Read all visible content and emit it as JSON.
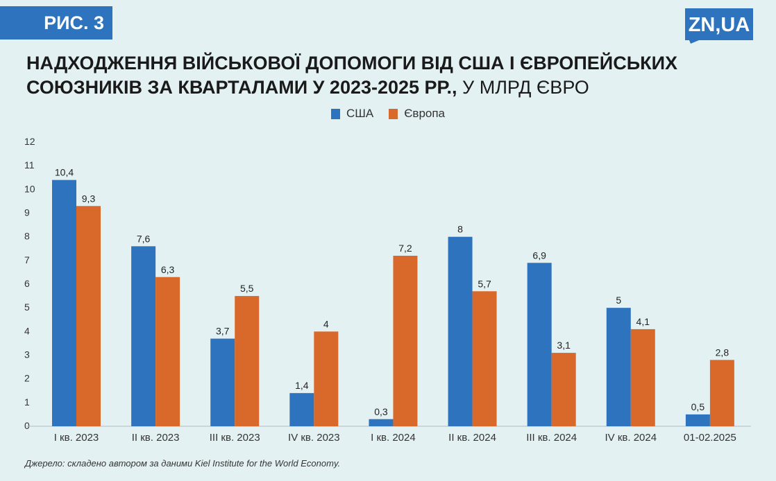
{
  "figure_label": "РИС. 3",
  "logo_text": "ZN,UA",
  "title_bold": "Надходження військової допомоги від США і європейських союзників за кварталами у 2023-2025 рр.,",
  "title_unit": "у млрд євро",
  "source": "Джерело: складено автором за даними Kiel Institute for the World Economy.",
  "colors": {
    "usa": "#2e73bd",
    "europe": "#d9692a",
    "background": "#e4f1f3",
    "axis": "#b5bcc0"
  },
  "chart_data": {
    "type": "bar",
    "title": "Надходження військової допомоги від США і європейських союзників за кварталами у 2023-2025 рр., у млрд євро",
    "xlabel": "",
    "ylabel": "",
    "ylim": [
      0,
      12
    ],
    "yticks": [
      "0",
      "1",
      "2",
      "3",
      "4",
      "5",
      "6",
      "7",
      "8",
      "9",
      "10",
      "11",
      "12"
    ],
    "categories": [
      "I кв. 2023",
      "II кв. 2023",
      "III кв. 2023",
      "IV кв. 2023",
      "I кв. 2024",
      "II кв. 2024",
      "III кв. 2024",
      "IV кв. 2024",
      "01-02.2025"
    ],
    "series": [
      {
        "name": "США",
        "values": [
          10.4,
          7.6,
          3.7,
          1.4,
          0.3,
          8,
          6.9,
          5,
          0.5
        ],
        "labels": [
          "10,4",
          "7,6",
          "3,7",
          "1,4",
          "0,3",
          "8",
          "6,9",
          "5",
          "0,5"
        ]
      },
      {
        "name": "Європа",
        "values": [
          9.3,
          6.3,
          5.5,
          4,
          7.2,
          5.7,
          3.1,
          4.1,
          2.8
        ],
        "labels": [
          "9,3",
          "6,3",
          "5,5",
          "4",
          "7,2",
          "5,7",
          "3,1",
          "4,1",
          "2,8"
        ]
      }
    ],
    "legend": "top-center",
    "grid": false
  }
}
